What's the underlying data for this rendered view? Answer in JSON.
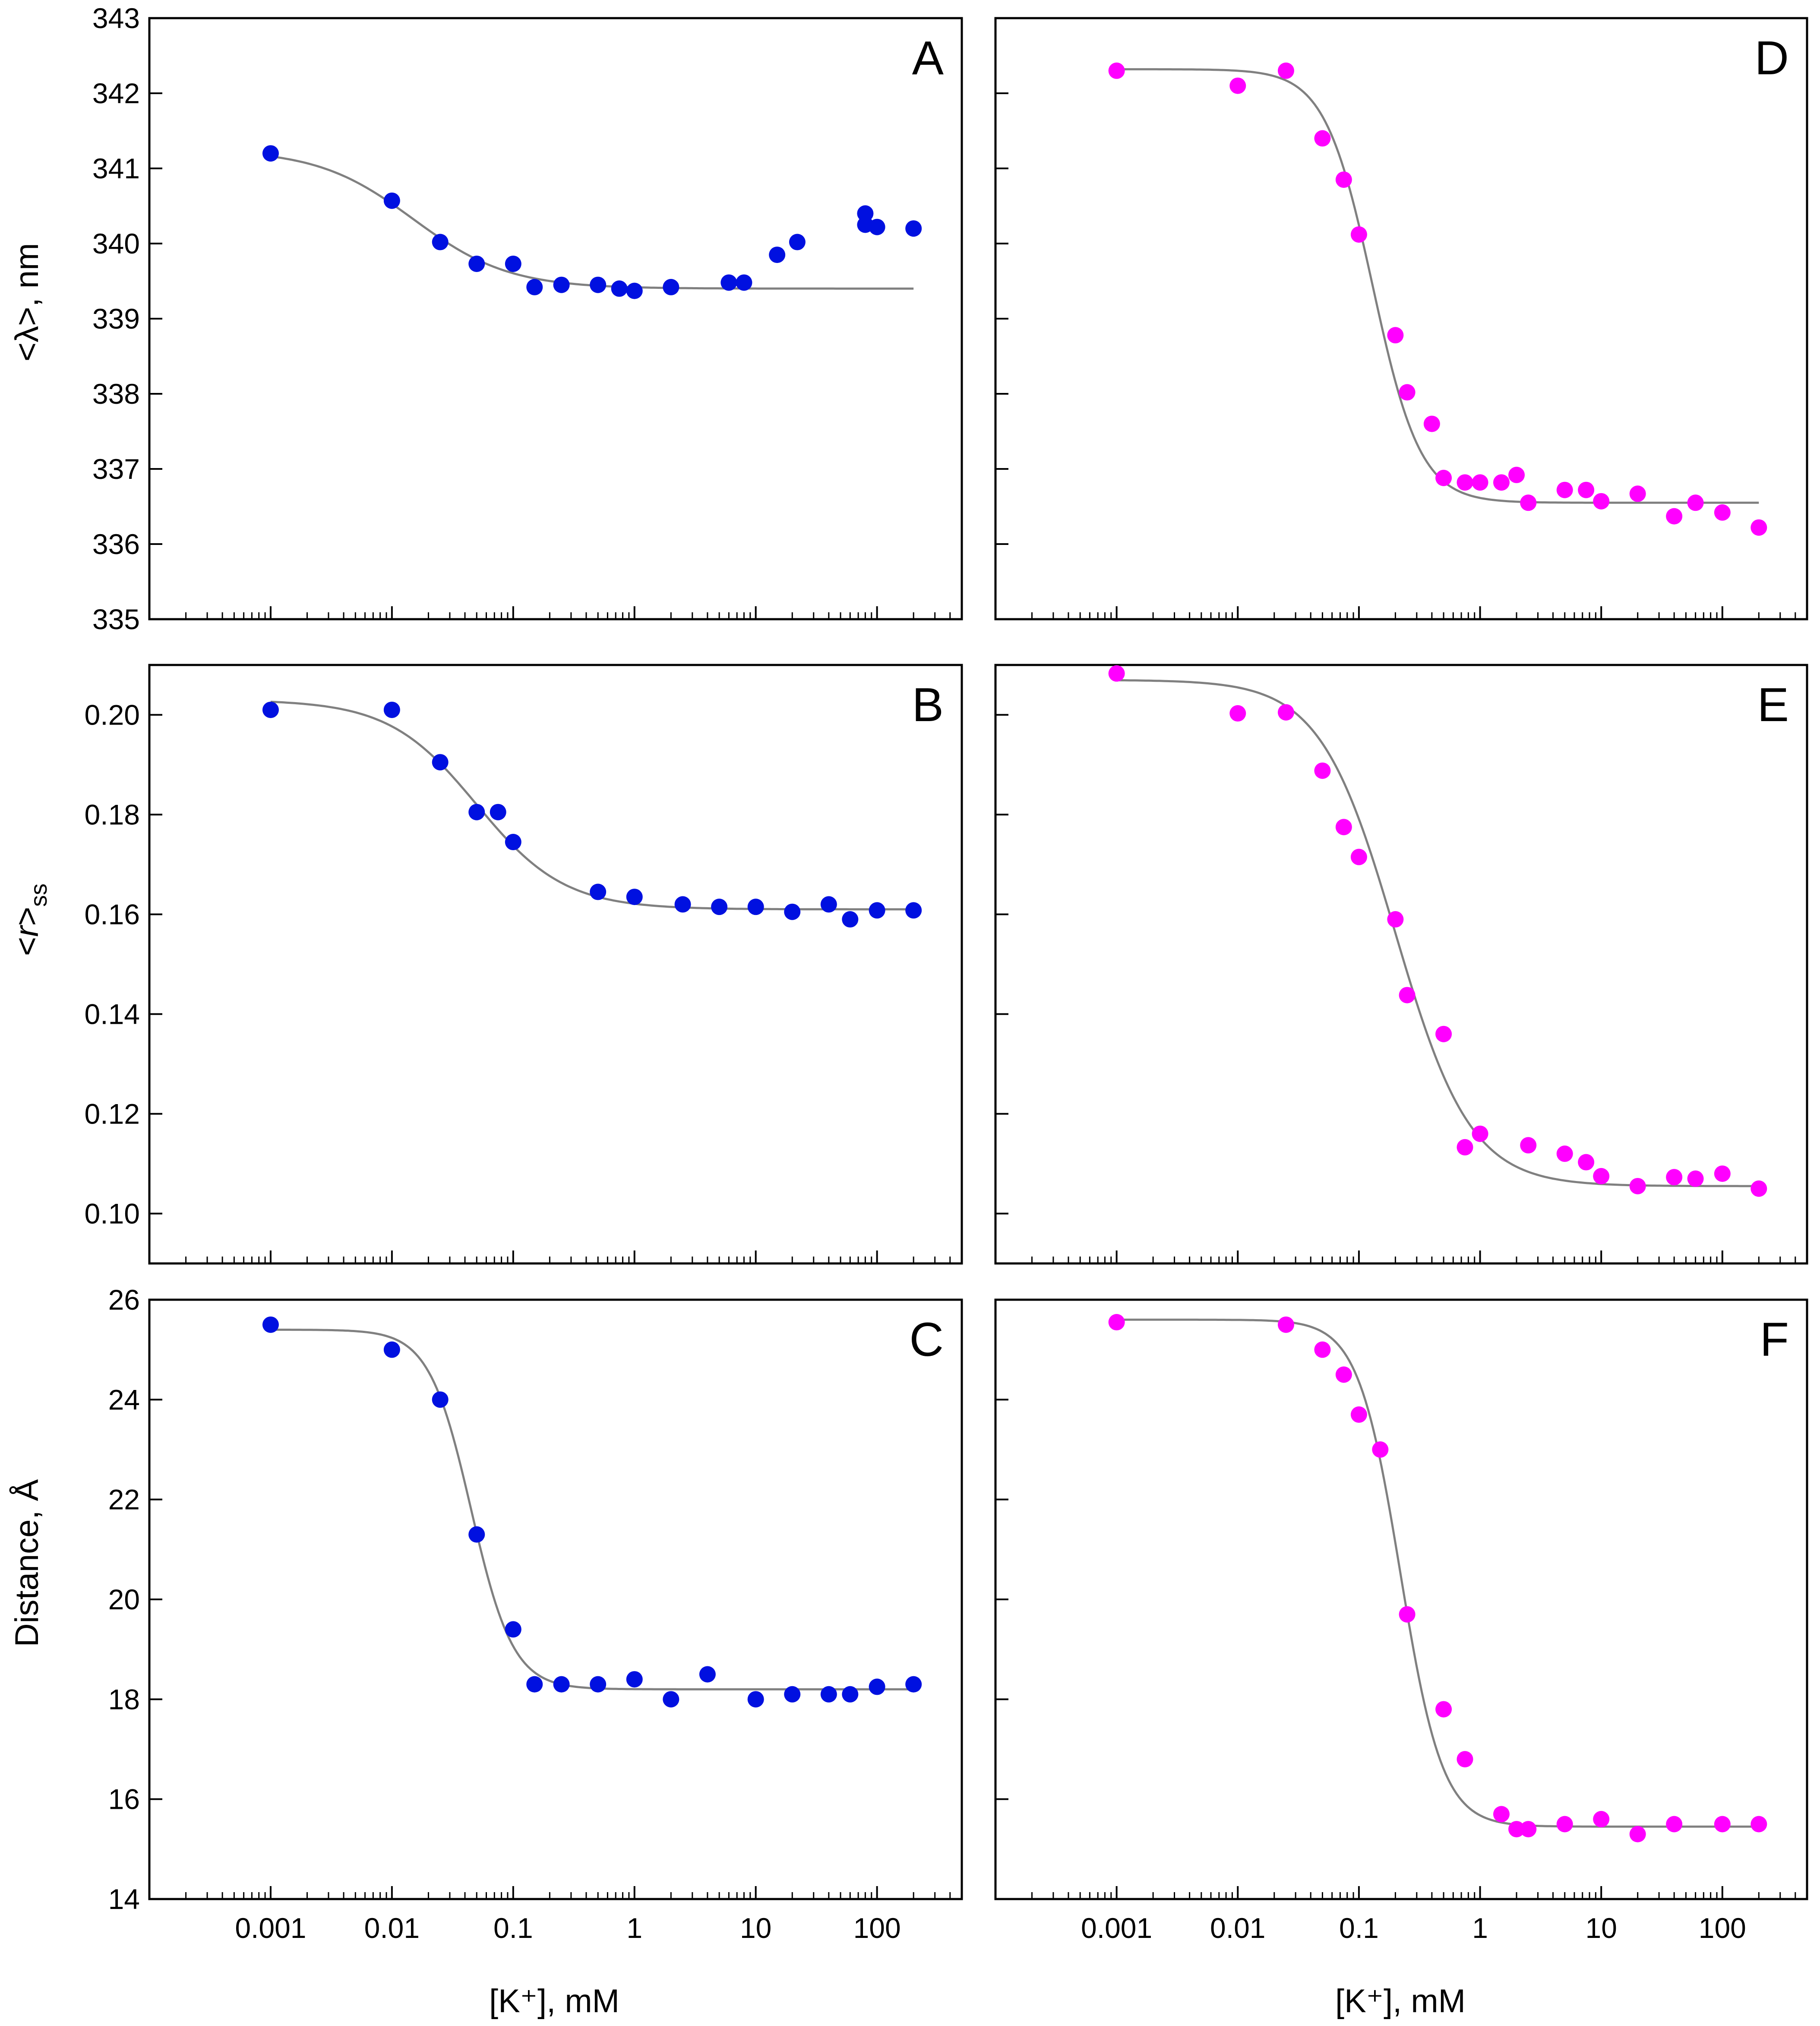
{
  "figure": {
    "x_axis_label": "[K⁺], mM",
    "colors": {
      "blue": "#0010e0",
      "magenta": "#ff00ff",
      "fit": "#808080"
    }
  },
  "chart_data": [
    {
      "id": "A",
      "panel_label": "A",
      "type": "scatter",
      "ylabel": "<λ>, nm",
      "xscale": "log",
      "xlim": [
        0.0001,
        500
      ],
      "ylim": [
        335,
        343
      ],
      "yticks": [
        335,
        336,
        337,
        338,
        339,
        340,
        341,
        342,
        343
      ],
      "ytick_labels": [
        "335",
        "336",
        "337",
        "338",
        "339",
        "340",
        "341",
        "342",
        "343"
      ],
      "xticks": [
        0.001,
        0.01,
        0.1,
        1,
        10,
        100
      ],
      "xtick_labels": [
        "",
        "",
        "",
        "",
        "",
        ""
      ],
      "color": "blue",
      "points": [
        [
          0.001,
          341.2
        ],
        [
          0.01,
          340.57
        ],
        [
          0.025,
          340.02
        ],
        [
          0.05,
          339.73
        ],
        [
          0.1,
          339.73
        ],
        [
          0.15,
          339.42
        ],
        [
          0.25,
          339.45
        ],
        [
          0.5,
          339.45
        ],
        [
          0.75,
          339.4
        ],
        [
          1,
          339.37
        ],
        [
          2,
          339.42
        ],
        [
          6,
          339.48
        ],
        [
          8,
          339.48
        ],
        [
          15,
          339.85
        ],
        [
          22,
          340.02
        ],
        [
          80,
          340.4
        ],
        [
          80,
          340.25
        ],
        [
          100,
          340.22
        ],
        [
          200,
          340.2
        ]
      ],
      "fit": {
        "model": "sigmoid",
        "top": 341.25,
        "bottom": 339.4,
        "ec50": 0.015,
        "hill": 1.1,
        "xrange": [
          0.001,
          200
        ]
      }
    },
    {
      "id": "B",
      "panel_label": "B",
      "type": "scatter",
      "ylabel": "<r>ss",
      "xscale": "log",
      "xlim": [
        0.0001,
        500
      ],
      "ylim": [
        0.09,
        0.21
      ],
      "yticks": [
        0.1,
        0.12,
        0.14,
        0.16,
        0.18,
        0.2
      ],
      "ytick_labels": [
        "0.10",
        "0.12",
        "0.14",
        "0.16",
        "0.18",
        "0.20"
      ],
      "xticks": [
        0.001,
        0.01,
        0.1,
        1,
        10,
        100
      ],
      "xtick_labels": [
        "",
        "",
        "",
        "",
        "",
        ""
      ],
      "color": "blue",
      "points": [
        [
          0.001,
          0.201
        ],
        [
          0.01,
          0.201
        ],
        [
          0.025,
          0.1905
        ],
        [
          0.05,
          0.1805
        ],
        [
          0.075,
          0.1805
        ],
        [
          0.1,
          0.1745
        ],
        [
          0.5,
          0.1645
        ],
        [
          1,
          0.1635
        ],
        [
          2.5,
          0.162
        ],
        [
          5,
          0.1615
        ],
        [
          10,
          0.1615
        ],
        [
          20,
          0.1605
        ],
        [
          40,
          0.162
        ],
        [
          60,
          0.159
        ],
        [
          100,
          0.1608
        ],
        [
          200,
          0.1608
        ]
      ],
      "fit": {
        "model": "sigmoid",
        "top": 0.203,
        "bottom": 0.161,
        "ec50": 0.05,
        "hill": 1.2,
        "xrange": [
          0.001,
          200
        ]
      }
    },
    {
      "id": "C",
      "panel_label": "C",
      "type": "scatter",
      "ylabel": "Distance, Å",
      "xscale": "log",
      "xlim": [
        0.0001,
        500
      ],
      "ylim": [
        14,
        26
      ],
      "yticks": [
        14,
        16,
        18,
        20,
        22,
        24,
        26
      ],
      "ytick_labels": [
        "14",
        "16",
        "18",
        "20",
        "22",
        "24",
        "26"
      ],
      "xticks": [
        0.001,
        0.01,
        0.1,
        1,
        10,
        100
      ],
      "xtick_labels": [
        "0.001",
        "0.01",
        "0.1",
        "1",
        "10",
        "100"
      ],
      "color": "blue",
      "points": [
        [
          0.001,
          25.5
        ],
        [
          0.01,
          25.0
        ],
        [
          0.025,
          24.0
        ],
        [
          0.05,
          21.3
        ],
        [
          0.1,
          19.4
        ],
        [
          0.15,
          18.3
        ],
        [
          0.25,
          18.3
        ],
        [
          0.5,
          18.3
        ],
        [
          1,
          18.4
        ],
        [
          2,
          18.0
        ],
        [
          4,
          18.5
        ],
        [
          10,
          18.0
        ],
        [
          20,
          18.1
        ],
        [
          40,
          18.1
        ],
        [
          60,
          18.1
        ],
        [
          100,
          18.25
        ],
        [
          200,
          18.3
        ]
      ],
      "fit": {
        "model": "sigmoid",
        "top": 25.4,
        "bottom": 18.2,
        "ec50": 0.045,
        "hill": 2.5,
        "xrange": [
          0.001,
          200
        ]
      }
    },
    {
      "id": "D",
      "panel_label": "D",
      "type": "scatter",
      "ylabel": "",
      "xscale": "log",
      "xlim": [
        0.0001,
        500
      ],
      "ylim": [
        335,
        343
      ],
      "yticks": [
        335,
        336,
        337,
        338,
        339,
        340,
        341,
        342,
        343
      ],
      "ytick_labels": [
        "",
        "",
        "",
        "",
        "",
        "",
        "",
        "",
        ""
      ],
      "xticks": [
        0.001,
        0.01,
        0.1,
        1,
        10,
        100
      ],
      "xtick_labels": [
        "",
        "",
        "",
        "",
        "",
        ""
      ],
      "color": "magenta",
      "points": [
        [
          0.001,
          342.3
        ],
        [
          0.01,
          342.1
        ],
        [
          0.025,
          342.3
        ],
        [
          0.05,
          341.4
        ],
        [
          0.075,
          340.85
        ],
        [
          0.1,
          340.12
        ],
        [
          0.2,
          338.78
        ],
        [
          0.25,
          338.02
        ],
        [
          0.4,
          337.6
        ],
        [
          0.5,
          336.88
        ],
        [
          0.75,
          336.82
        ],
        [
          1,
          336.82
        ],
        [
          1.5,
          336.82
        ],
        [
          2,
          336.92
        ],
        [
          2.5,
          336.55
        ],
        [
          5,
          336.72
        ],
        [
          7.5,
          336.72
        ],
        [
          10,
          336.57
        ],
        [
          20,
          336.67
        ],
        [
          40,
          336.37
        ],
        [
          60,
          336.55
        ],
        [
          100,
          336.42
        ],
        [
          200,
          336.22
        ]
      ],
      "fit": {
        "model": "sigmoid",
        "top": 342.32,
        "bottom": 336.55,
        "ec50": 0.13,
        "hill": 2.2,
        "xrange": [
          0.001,
          200
        ]
      }
    },
    {
      "id": "E",
      "panel_label": "E",
      "type": "scatter",
      "ylabel": "",
      "xscale": "log",
      "xlim": [
        0.0001,
        500
      ],
      "ylim": [
        0.09,
        0.21
      ],
      "yticks": [
        0.1,
        0.12,
        0.14,
        0.16,
        0.18,
        0.2
      ],
      "ytick_labels": [
        "",
        "",
        "",
        "",
        "",
        ""
      ],
      "xticks": [
        0.001,
        0.01,
        0.1,
        1,
        10,
        100
      ],
      "xtick_labels": [
        "",
        "",
        "",
        "",
        "",
        ""
      ],
      "color": "magenta",
      "points": [
        [
          0.001,
          0.2083
        ],
        [
          0.01,
          0.2003
        ],
        [
          0.025,
          0.2005
        ],
        [
          0.05,
          0.1888
        ],
        [
          0.075,
          0.1775
        ],
        [
          0.1,
          0.1715
        ],
        [
          0.2,
          0.159
        ],
        [
          0.25,
          0.1438
        ],
        [
          0.5,
          0.136
        ],
        [
          0.75,
          0.1133
        ],
        [
          1,
          0.116
        ],
        [
          2.5,
          0.1137
        ],
        [
          5,
          0.112
        ],
        [
          7.5,
          0.1103
        ],
        [
          10,
          0.1075
        ],
        [
          20,
          0.1055
        ],
        [
          40,
          0.1073
        ],
        [
          60,
          0.107
        ],
        [
          100,
          0.108
        ],
        [
          200,
          0.105
        ]
      ],
      "fit": {
        "model": "sigmoid",
        "top": 0.207,
        "bottom": 0.1055,
        "ec50": 0.2,
        "hill": 1.4,
        "xrange": [
          0.001,
          200
        ]
      }
    },
    {
      "id": "F",
      "panel_label": "F",
      "type": "scatter",
      "ylabel": "",
      "xscale": "log",
      "xlim": [
        0.0001,
        500
      ],
      "ylim": [
        14,
        26
      ],
      "yticks": [
        14,
        16,
        18,
        20,
        22,
        24,
        26
      ],
      "ytick_labels": [
        "",
        "",
        "",
        "",
        "",
        "",
        ""
      ],
      "xticks": [
        0.001,
        0.01,
        0.1,
        1,
        10,
        100
      ],
      "xtick_labels": [
        "0.001",
        "0.01",
        "0.1",
        "1",
        "10",
        "100"
      ],
      "color": "magenta",
      "points": [
        [
          0.001,
          25.55
        ],
        [
          0.025,
          25.5
        ],
        [
          0.05,
          25.0
        ],
        [
          0.075,
          24.5
        ],
        [
          0.1,
          23.7
        ],
        [
          0.15,
          23.0
        ],
        [
          0.25,
          19.7
        ],
        [
          0.5,
          17.8
        ],
        [
          0.75,
          16.8
        ],
        [
          1.5,
          15.7
        ],
        [
          2,
          15.4
        ],
        [
          2.5,
          15.4
        ],
        [
          5,
          15.5
        ],
        [
          10,
          15.6
        ],
        [
          20,
          15.3
        ],
        [
          40,
          15.5
        ],
        [
          100,
          15.5
        ],
        [
          200,
          15.5
        ]
      ],
      "fit": {
        "model": "sigmoid",
        "top": 25.6,
        "bottom": 15.45,
        "ec50": 0.22,
        "hill": 2.5,
        "xrange": [
          0.001,
          200
        ]
      }
    }
  ]
}
